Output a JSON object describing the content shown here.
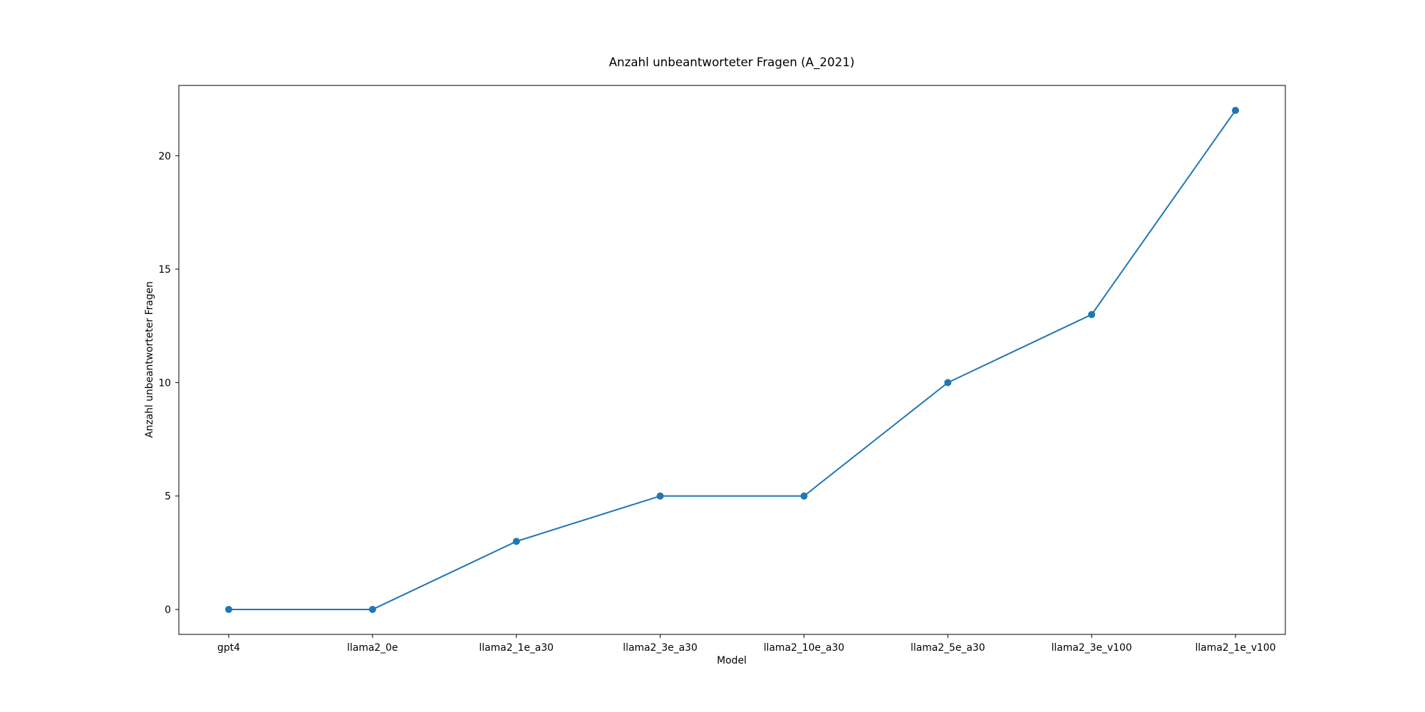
{
  "chart_data": {
    "type": "line",
    "title": "Anzahl unbeantworteter Fragen (A_2021)",
    "xlabel": "Model",
    "ylabel": "Anzahl unbeantworteter Fragen",
    "categories": [
      "gpt4",
      "llama2_0e",
      "llama2_1e_a30",
      "llama2_3e_a30",
      "llama2_10e_a30",
      "llama2_5e_a30",
      "llama2_3e_v100",
      "llama2_1e_v100"
    ],
    "series": [
      {
        "values": [
          0,
          0,
          3,
          5,
          5,
          10,
          13,
          22
        ],
        "color": "#1f77b4",
        "marker": "circle"
      }
    ],
    "ylim": [
      -1.1,
      23.1
    ],
    "yticks": [
      0,
      5,
      10,
      15,
      20
    ],
    "grid": false,
    "legend": "none"
  }
}
